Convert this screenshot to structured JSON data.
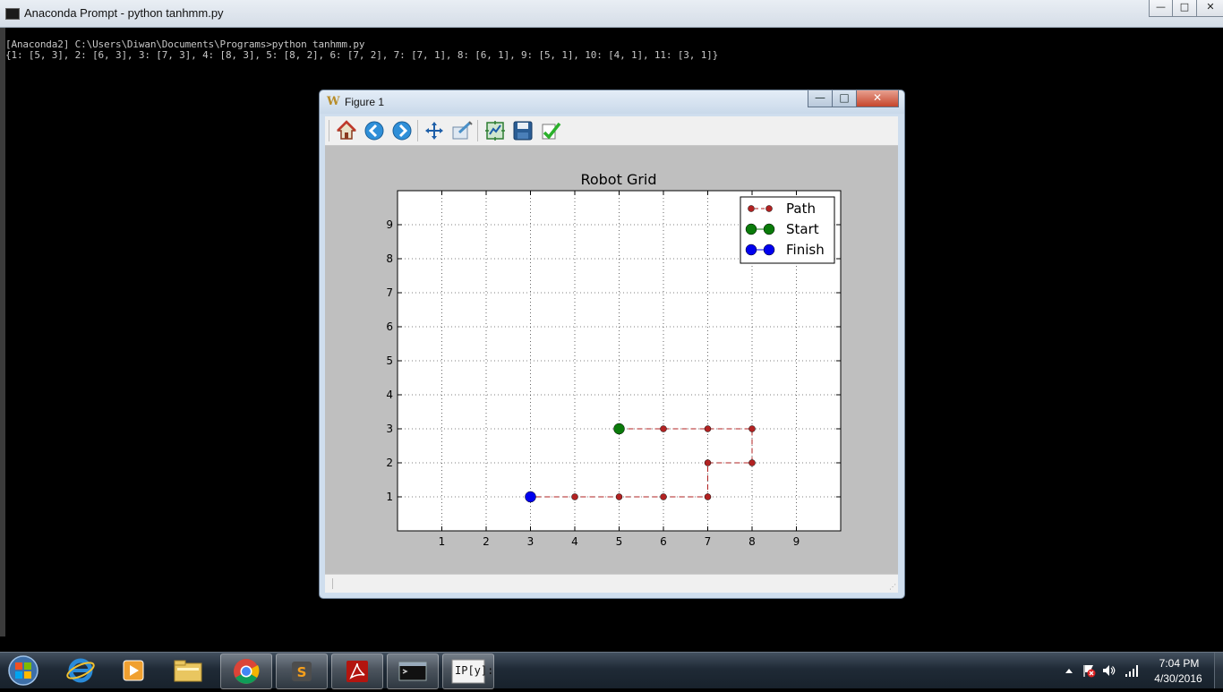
{
  "console": {
    "title": "Anaconda Prompt - python  tanhmm.py",
    "line1": "[Anaconda2] C:\\Users\\Diwan\\Documents\\Programs>python tanhmm.py",
    "line2": "{1: [5, 3], 2: [6, 3], 3: [7, 3], 4: [8, 3], 5: [8, 2], 6: [7, 2], 7: [7, 1], 8: [6, 1], 9: [5, 1], 10: [4, 1], 11: [3, 1]}",
    "controls": {
      "minimize": "—",
      "maximize": "□",
      "close": "✕"
    }
  },
  "figure": {
    "title": "Figure 1",
    "controls": {
      "minimize": "—",
      "maximize": "□",
      "close": "✕"
    },
    "toolbar": [
      "home-icon",
      "back-icon",
      "forward-icon",
      "pan-icon",
      "zoom-icon",
      "subplots-icon",
      "save-icon",
      "edit-icon"
    ]
  },
  "chart_data": {
    "type": "line",
    "title": "Robot Grid",
    "xlabel": "",
    "ylabel": "",
    "xlim": [
      0,
      10
    ],
    "ylim": [
      0,
      10
    ],
    "xticks": [
      1,
      2,
      3,
      4,
      5,
      6,
      7,
      8,
      9
    ],
    "yticks": [
      1,
      2,
      3,
      4,
      5,
      6,
      7,
      8,
      9
    ],
    "grid": true,
    "legend_position": "top-right",
    "series": [
      {
        "name": "Path",
        "style": "dashed",
        "color": "#b22222",
        "x": [
          5,
          6,
          7,
          8,
          8,
          7,
          7,
          6,
          5,
          4,
          3
        ],
        "y": [
          3,
          3,
          3,
          3,
          2,
          2,
          1,
          1,
          1,
          1,
          1
        ]
      },
      {
        "name": "Start",
        "style": "solid",
        "color": "#0a7a0a",
        "x": [
          5
        ],
        "y": [
          3
        ]
      },
      {
        "name": "Finish",
        "style": "solid",
        "color": "#0000ee",
        "x": [
          3
        ],
        "y": [
          1
        ]
      }
    ]
  },
  "taskbar": {
    "items": [
      "internet-explorer-icon",
      "media-player-icon",
      "file-explorer-icon",
      "chrome-icon",
      "sublime-text-icon",
      "acrobat-icon",
      "command-prompt-icon",
      "ipython-icon"
    ],
    "ipython_label": "IP[y]:",
    "time": "7:04 PM",
    "date": "4/30/2016"
  },
  "colors": {
    "console_bg": "#000000",
    "canvas_bg": "#bfbfbf",
    "path": "#b22222",
    "start": "#0a7a0a",
    "finish": "#0000ee"
  }
}
